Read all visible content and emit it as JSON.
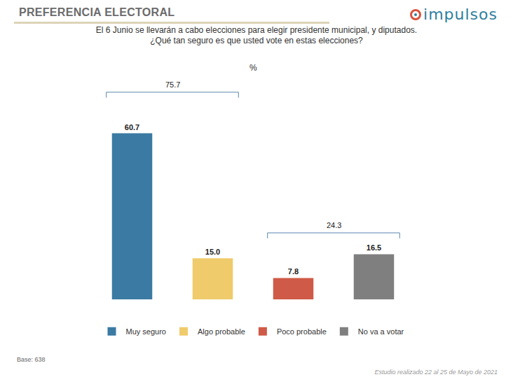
{
  "header": "PREFERENCIA ELECTORAL",
  "logo": "impulsos",
  "chart_data": {
    "type": "bar",
    "title": "El 6 Junio se llevarán a cabo elecciones para elegir presidente municipal, y diputados.\n¿Qué tan seguro es que usted vote en estas elecciones?",
    "subtitle": "%",
    "categories": [
      "Muy seguro",
      "Algo probable",
      "Poco probable",
      "No va a votar"
    ],
    "values": [
      60.7,
      15.0,
      7.8,
      16.5
    ],
    "value_labels": [
      "60.7",
      "15.0",
      "7.8",
      "16.5"
    ],
    "colors": [
      "#3a7aa3",
      "#efcb6b",
      "#cf5a47",
      "#7f7f7f"
    ],
    "data_labels": true,
    "tick_labels": false,
    "grid": false,
    "legend": "bottom",
    "ylim": [
      0,
      80
    ],
    "groups": [
      {
        "categories": [
          "Muy seguro",
          "Algo probable"
        ],
        "value": 75.7
      },
      {
        "categories": [
          "Poco probable",
          "No va a votar"
        ],
        "value": 24.3
      }
    ]
  },
  "notes": {
    "base": "Base: 638",
    "source": "Estudio realizado 22 al 25 de Mayo de 2021"
  }
}
